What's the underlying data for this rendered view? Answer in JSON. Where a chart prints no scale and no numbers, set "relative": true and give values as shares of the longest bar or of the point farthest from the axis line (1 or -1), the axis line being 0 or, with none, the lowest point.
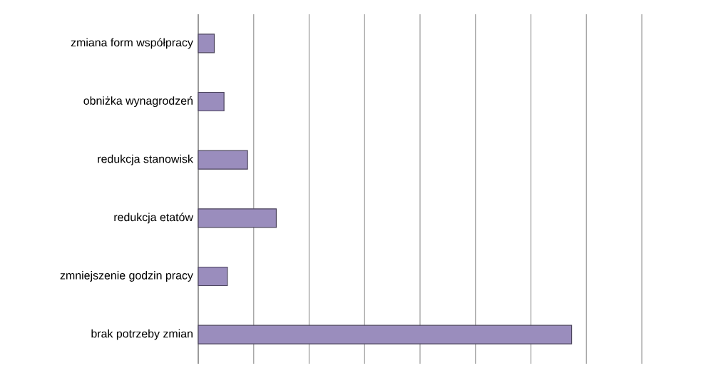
{
  "chart_data": {
    "type": "bar",
    "orientation": "horizontal",
    "relative": true,
    "grid": "x",
    "color": "#9a8dbd",
    "categories": [
      "zmiana form współpracy",
      "obniżka wynagrodzeń",
      "redukcja stanowisk",
      "redukcja etatów",
      "zmniejszenie godzin pracy",
      "brak potrzeby zmian"
    ],
    "values": [
      0.043,
      0.069,
      0.132,
      0.209,
      0.078,
      1
    ]
  }
}
